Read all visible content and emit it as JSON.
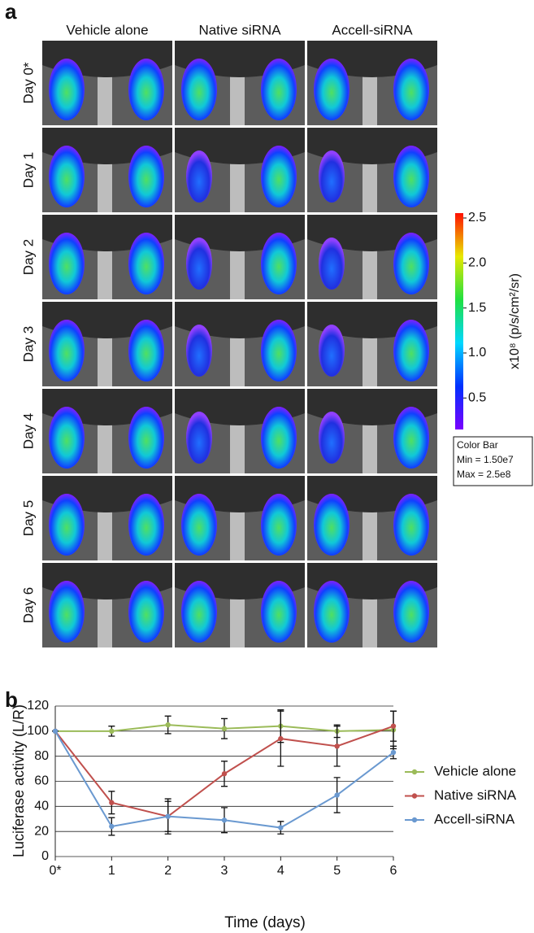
{
  "panel_a": {
    "label": "a",
    "columns": [
      "Vehicle alone",
      "Native siRNA",
      "Accell-siRNA"
    ],
    "rows": [
      "Day 0*",
      "Day 1",
      "Day 2",
      "Day 3",
      "Day 4",
      "Day 5",
      "Day 6"
    ],
    "colorbar": {
      "lim": [
        0.15,
        2.5
      ],
      "ticks": [
        0.5,
        {
          "value": 1,
          "label": "1.0"
        },
        1.5,
        {
          "value": 2,
          "label": "2.0"
        },
        2.5
      ],
      "axis_label": "x10⁸ (p/s/cm²/sr)",
      "legend_lines": [
        "Color Bar",
        "Min = 1.50e7",
        "Max = 2.5e8"
      ]
    }
  },
  "chart_data": {
    "type": "line",
    "label": "b",
    "categories": [
      "0*",
      "1",
      "2",
      "3",
      "4",
      "5",
      "6"
    ],
    "series": [
      {
        "name": "Vehicle alone",
        "color": "#9bbb59",
        "values": [
          100,
          100,
          105,
          102,
          104,
          100,
          101
        ],
        "errors": [
          0,
          4,
          7,
          8,
          13,
          5,
          15
        ]
      },
      {
        "name": "Native siRNA",
        "color": "#c0504d",
        "values": [
          100,
          43,
          32,
          66,
          94,
          88,
          104
        ],
        "errors": [
          0,
          9,
          14,
          10,
          22,
          16,
          12
        ]
      },
      {
        "name": "Accell-siRNA",
        "color": "#6a99d0",
        "values": [
          100,
          24,
          32,
          29,
          23,
          49,
          83
        ],
        "errors": [
          0,
          7,
          12,
          10,
          5,
          14,
          5
        ]
      }
    ],
    "ylim": [
      0,
      120
    ],
    "yticks": [
      0,
      20,
      40,
      60,
      80,
      100,
      120
    ],
    "grid": true,
    "y_label": "Luciferase activity (L/R)",
    "x_label": "Time (days)",
    "legend": "right"
  }
}
